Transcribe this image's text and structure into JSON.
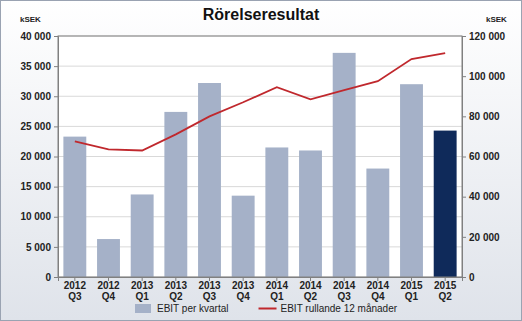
{
  "chart_data": {
    "type": "bar",
    "title": "Rörelseresultat",
    "y_label": "kSEK",
    "y2_label": "kSEK",
    "categories": [
      "2012\nQ3",
      "2012\nQ4",
      "2013\nQ1",
      "2013\nQ2",
      "2013\nQ3",
      "2013\nQ4",
      "2014\nQ1",
      "2014\nQ2",
      "2014\nQ3",
      "2014\nQ4",
      "2015\nQ1",
      "2015\nQ2"
    ],
    "series": [
      {
        "name": "EBIT per kvartal",
        "type": "bar",
        "colors": [
          "#a5b1c8",
          "#a5b1c8",
          "#a5b1c8",
          "#a5b1c8",
          "#a5b1c8",
          "#a5b1c8",
          "#a5b1c8",
          "#a5b1c8",
          "#a5b1c8",
          "#a5b1c8",
          "#a5b1c8",
          "#0f2a5a"
        ],
        "values": [
          23300,
          6300,
          13700,
          27400,
          32200,
          13500,
          21500,
          21000,
          37200,
          18000,
          32000,
          24300
        ]
      },
      {
        "name": "EBIT rullande 12 månader",
        "type": "line",
        "color": "#c0282d",
        "axis": "y2",
        "values": [
          67500,
          63500,
          63000,
          71000,
          80000,
          87000,
          94500,
          88500,
          93000,
          97500,
          108500,
          111500
        ]
      }
    ],
    "ylim": [
      0,
      40000
    ],
    "yticks": [
      0,
      {
        "value": 5000,
        "label": "5 000"
      },
      {
        "value": 10000,
        "label": "10 000"
      },
      {
        "value": 15000,
        "label": "15 000"
      },
      {
        "value": 20000,
        "label": "20 000"
      },
      {
        "value": 25000,
        "label": "25 000"
      },
      {
        "value": 30000,
        "label": "30 000"
      },
      {
        "value": 35000,
        "label": "35 000"
      },
      {
        "value": 40000,
        "label": "40 000"
      }
    ],
    "y2lim": [
      0,
      120000
    ],
    "y2ticks": [
      0,
      {
        "value": 20000,
        "label": "20 000"
      },
      {
        "value": 40000,
        "label": "40 000"
      },
      {
        "value": 60000,
        "label": "60 000"
      },
      {
        "value": 80000,
        "label": "80 000"
      },
      {
        "value": 100000,
        "label": "100 000"
      },
      {
        "value": 120000,
        "label": "120 000"
      }
    ],
    "grid": true,
    "legend": "bottom"
  }
}
